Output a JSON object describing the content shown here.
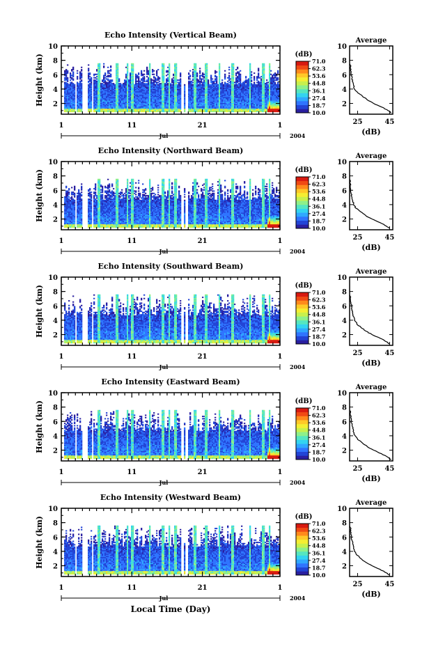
{
  "figure": {
    "xlabel": "Local Time (Day)",
    "month": "Jul",
    "year": "2004"
  },
  "colorbar": {
    "unit": "(dB)",
    "ticks": [
      "71.0",
      "62.3",
      "53.6",
      "44.8",
      "36.1",
      "27.4",
      "18.7",
      "10.0"
    ],
    "colors": [
      "#2a1fa0",
      "#2244d6",
      "#2f74ff",
      "#2fa8ff",
      "#33d4f0",
      "#55e6c0",
      "#8ef08a",
      "#c8f04c",
      "#f5ee32",
      "#ffc828",
      "#ff8a1c",
      "#f04a14",
      "#d81a10"
    ]
  },
  "chart_data": [
    {
      "type": "heatmap",
      "title": "Echo Intensity (Vertical Beam)",
      "ylabel": "Height (km)",
      "xticks": [
        "1",
        "11",
        "21",
        "1"
      ],
      "yticks": [
        "2",
        "4",
        "6",
        "8",
        "10"
      ],
      "ylim": [
        0.5,
        10
      ],
      "clim": [
        10.0,
        71.0
      ],
      "profile": {
        "title": "Average",
        "xlabel": "(dB)",
        "xticks": [
          "25",
          "45"
        ],
        "yticks": [
          "2",
          "4",
          "6",
          "8",
          "10"
        ],
        "xlim": [
          20,
          47
        ],
        "height_km": [
          0.7,
          1.0,
          1.5,
          2.0,
          2.5,
          3.0,
          3.5,
          4.0,
          4.5,
          5.0,
          5.5,
          6.0,
          6.5,
          7.0,
          7.5
        ],
        "mean_db": [
          46,
          44,
          40,
          35,
          31,
          28,
          25,
          23,
          22.5,
          22,
          21.5,
          21,
          20.8,
          20.5,
          20.3
        ]
      }
    },
    {
      "type": "heatmap",
      "title": "Echo Intensity (Northward Beam)",
      "ylabel": "Height (km)",
      "xticks": [
        "1",
        "11",
        "21",
        "1"
      ],
      "yticks": [
        "2",
        "4",
        "6",
        "8",
        "10"
      ],
      "ylim": [
        0.5,
        10
      ],
      "clim": [
        10.0,
        71.0
      ],
      "profile": {
        "title": "Average",
        "xlabel": "(dB)",
        "xticks": [
          "25",
          "45"
        ],
        "yticks": [
          "2",
          "4",
          "6",
          "8",
          "10"
        ],
        "xlim": [
          20,
          47
        ],
        "height_km": [
          0.7,
          1.0,
          1.5,
          2.0,
          2.5,
          3.0,
          3.5,
          4.0,
          4.5,
          5.0,
          5.5,
          6.0,
          6.5,
          7.0,
          7.5
        ],
        "mean_db": [
          45,
          43,
          39,
          34,
          30,
          27,
          24,
          22.5,
          22,
          21.5,
          21,
          20.8,
          20.5,
          20.3,
          20.1
        ]
      }
    },
    {
      "type": "heatmap",
      "title": "Echo Intensity (Southward Beam)",
      "ylabel": "Height (km)",
      "xticks": [
        "1",
        "11",
        "21",
        "1"
      ],
      "yticks": [
        "2",
        "4",
        "6",
        "8",
        "10"
      ],
      "ylim": [
        0.5,
        10
      ],
      "clim": [
        10.0,
        71.0
      ],
      "profile": {
        "title": "Average",
        "xlabel": "(dB)",
        "xticks": [
          "25",
          "45"
        ],
        "yticks": [
          "2",
          "4",
          "6",
          "8",
          "10"
        ],
        "xlim": [
          20,
          47
        ],
        "height_km": [
          0.7,
          1.0,
          1.5,
          2.0,
          2.5,
          3.0,
          3.5,
          4.0,
          4.5,
          5.0,
          5.5,
          6.0,
          6.5,
          7.0,
          7.5
        ],
        "mean_db": [
          45,
          43,
          39,
          34,
          30,
          27,
          24.5,
          23,
          22.5,
          22,
          21.5,
          21,
          20.8,
          20.5,
          20.3
        ]
      }
    },
    {
      "type": "heatmap",
      "title": "Echo Intensity (Eastward Beam)",
      "ylabel": "Height (km)",
      "xticks": [
        "1",
        "11",
        "21",
        "1"
      ],
      "yticks": [
        "2",
        "4",
        "6",
        "8",
        "10"
      ],
      "ylim": [
        0.5,
        10
      ],
      "clim": [
        10.0,
        71.0
      ],
      "profile": {
        "title": "Average",
        "xlabel": "(dB)",
        "xticks": [
          "25",
          "45"
        ],
        "yticks": [
          "2",
          "4",
          "6",
          "8",
          "10"
        ],
        "xlim": [
          20,
          47
        ],
        "height_km": [
          0.7,
          1.0,
          1.5,
          2.0,
          2.5,
          3.0,
          3.5,
          4.0,
          4.5,
          5.0,
          5.5,
          6.0,
          6.5,
          7.0,
          7.5
        ],
        "mean_db": [
          46,
          44,
          40,
          35,
          31,
          28,
          25,
          23.5,
          22.5,
          22,
          21.5,
          21,
          20.8,
          20.5,
          20.3
        ]
      }
    },
    {
      "type": "heatmap",
      "title": "Echo Intensity (Westward Beam)",
      "ylabel": "Height (km)",
      "xticks": [
        "1",
        "11",
        "21",
        "1"
      ],
      "yticks": [
        "2",
        "4",
        "6",
        "8",
        "10"
      ],
      "ylim": [
        0.5,
        10
      ],
      "clim": [
        10.0,
        71.0
      ],
      "profile": {
        "title": "Average",
        "xlabel": "(dB)",
        "xticks": [
          "25",
          "45"
        ],
        "yticks": [
          "2",
          "4",
          "6",
          "8",
          "10"
        ],
        "xlim": [
          20,
          47
        ],
        "height_km": [
          0.7,
          1.0,
          1.5,
          2.0,
          2.5,
          3.0,
          3.5,
          4.0,
          4.5,
          5.0,
          5.5,
          6.0,
          6.5,
          7.0,
          7.5
        ],
        "mean_db": [
          45,
          43,
          39,
          34,
          30,
          27,
          24.5,
          23,
          22.5,
          22,
          21.5,
          21,
          20.8,
          20.5,
          20.3
        ]
      }
    }
  ]
}
